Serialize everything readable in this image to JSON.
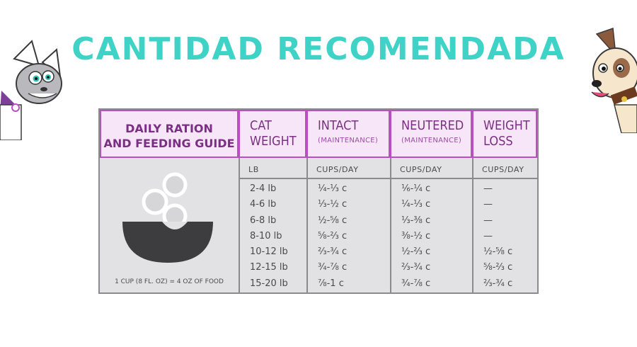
{
  "page": {
    "title": "CANTIDAD RECOMENDADA"
  },
  "guide": {
    "title_line1": "DAILY RATION",
    "title_line2": "AND FEEDING GUIDE",
    "cup_note": "1 CUP (8 FL. OZ) = 4 OZ OF FOOD"
  },
  "columns": [
    {
      "head1": "CAT",
      "head2": "WEIGHT",
      "sub": "",
      "unit": "LB",
      "values": [
        "2-4 lb",
        "4-6 lb",
        "6-8 lb",
        "8-10 lb",
        "10-12 lb",
        "12-15 lb",
        "15-20 lb"
      ]
    },
    {
      "head1": "INTACT",
      "head2": "",
      "sub": "(MAINTENANCE)",
      "unit": "CUPS/DAY",
      "values": [
        "¼-⅓ c",
        "⅓-½ c",
        "½-⅝ c",
        "⅝-⅔ c",
        "⅔-¾ c",
        "¾-⅞ c",
        "⅞-1 c"
      ]
    },
    {
      "head1": "NEUTERED",
      "head2": "",
      "sub": "(MAINTENANCE)",
      "unit": "CUPS/DAY",
      "values": [
        "⅙-¼ c",
        "¼-⅓ c",
        "⅓-⅜ c",
        "⅜-½ c",
        "½-⅔ c",
        "⅔-¾ c",
        "¾-⅞ c"
      ]
    },
    {
      "head1": "WEIGHT",
      "head2": "LOSS",
      "sub": "",
      "unit": "CUPS/DAY",
      "values": [
        "—",
        "—",
        "—",
        "—",
        "½-⅝ c",
        "⅝-⅔ c",
        "⅔-¾ c"
      ]
    }
  ],
  "colors": {
    "title": "#3ed3c6",
    "header_fill": "#f7e6f7",
    "header_border": "#b94fc0",
    "header_text": "#7b2f84",
    "table_fill": "#e2e1e3"
  }
}
